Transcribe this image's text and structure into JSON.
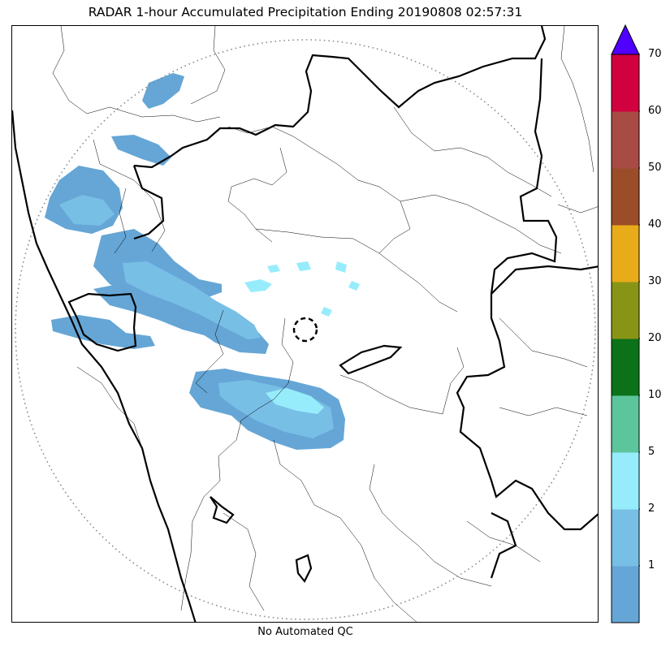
{
  "title": "RADAR 1-hour Accumulated Precipitation Ending 20190808 02:57:31",
  "footer": "No Automated QC",
  "colorbar": {
    "ticks": [
      "1",
      "2",
      "5",
      "10",
      "20",
      "30",
      "40",
      "50",
      "60",
      "70"
    ],
    "bins": [
      {
        "from": 0,
        "to": 1,
        "color": "#65a6d6"
      },
      {
        "from": 1,
        "to": 2,
        "color": "#78bfe6"
      },
      {
        "from": 2,
        "to": 5,
        "color": "#97ecfc"
      },
      {
        "from": 5,
        "to": 10,
        "color": "#5dc59c"
      },
      {
        "from": 10,
        "to": 20,
        "color": "#0c7219"
      },
      {
        "from": 20,
        "to": 30,
        "color": "#889416"
      },
      {
        "from": 30,
        "to": 40,
        "color": "#e8ab1a"
      },
      {
        "from": 40,
        "to": 50,
        "color": "#9b4c28"
      },
      {
        "from": 50,
        "to": 60,
        "color": "#a74b44"
      },
      {
        "from": 60,
        "to": 70,
        "color": "#d1003f"
      }
    ],
    "overflow_color": "#5000ff",
    "extend": "max"
  },
  "icons": {
    "radar_site": "radar-site-circle-icon",
    "range_ring": "dotted-range-ring"
  }
}
